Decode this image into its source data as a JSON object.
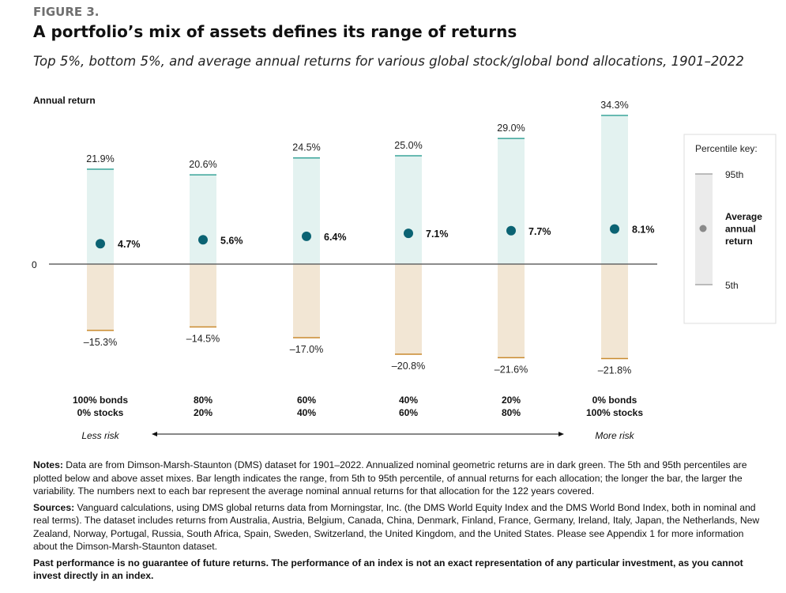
{
  "figure_label": "FIGURE 3.",
  "title": "A portfolio’s mix of assets defines its range of returns",
  "subtitle": "Top 5%, bottom 5%, and average annual returns for various global stock/global bond allocations, 1901–2022",
  "chart_data": {
    "type": "range-bar",
    "ylabel": "Annual return",
    "zero_label": "0",
    "categories": [
      {
        "bonds": "100% bonds",
        "stocks": "0% stocks"
      },
      {
        "bonds": "80%",
        "stocks": "20%"
      },
      {
        "bonds": "60%",
        "stocks": "40%"
      },
      {
        "bonds": "40%",
        "stocks": "60%"
      },
      {
        "bonds": "20%",
        "stocks": "80%"
      },
      {
        "bonds": "0% bonds",
        "stocks": "100% stocks"
      }
    ],
    "p95": [
      21.9,
      20.6,
      24.5,
      25.0,
      29.0,
      34.3
    ],
    "p5": [
      -15.3,
      -14.5,
      -17.0,
      -20.8,
      -21.6,
      -21.8
    ],
    "average": [
      4.7,
      5.6,
      6.4,
      7.1,
      7.7,
      8.1
    ],
    "p95_labels": [
      "21.9%",
      "20.6%",
      "24.5%",
      "25.0%",
      "29.0%",
      "34.3%"
    ],
    "p5_labels": [
      "–15.3%",
      "–14.5%",
      "–17.0%",
      "–20.8%",
      "–21.6%",
      "–21.8%"
    ],
    "average_labels": [
      "4.7%",
      "5.6%",
      "6.4%",
      "7.1%",
      "7.7%",
      "8.1%"
    ],
    "risk_left": "Less risk",
    "risk_right": "More risk",
    "colors": {
      "positive_fill": "#e3f2f0",
      "positive_line": "#3aa59a",
      "negative_fill": "#f2e6d4",
      "negative_line": "#c98a2e",
      "dot": "#0b6373",
      "zero_line": "#666666"
    },
    "legend": {
      "title": "Percentile key:",
      "top": "95th",
      "middle": "Average annual return",
      "middle_lines": [
        "Average",
        "annual",
        "return"
      ],
      "bottom": "5th",
      "placement": "right"
    }
  },
  "notes": {
    "notes_label": "Notes:",
    "notes_text": " Data are from Dimson-Marsh-Staunton (DMS) dataset for 1901–2022. Annualized nominal geometric returns are in dark green. The 5th and 95th percentiles are plotted below and above asset mixes. Bar length indicates the range, from 5th to 95th percentile, of annual returns for each allocation; the longer the bar, the larger the variability. The numbers next to each bar represent the average nominal annual returns for that allocation for the 122 years covered.",
    "sources_label": "Sources:",
    "sources_text": " Vanguard calculations, using DMS global returns data from Morningstar, Inc. (the DMS World Equity Index and the DMS World Bond Index, both in nominal and real terms). The dataset includes returns from Australia, Austria, Belgium, Canada, China, Denmark, Finland, France, Germany, Ireland, Italy, Japan, the Netherlands, New Zealand, Norway, Portugal, Russia, South Africa, Spain, Sweden, Switzerland, the United Kingdom, and the United States. Please see Appendix 1 for more information about the Dimson-Marsh-Staunton dataset.",
    "disclaimer": "Past performance is no guarantee of future returns. The performance of an index is not an exact representation of any particular investment, as you cannot invest directly in an index."
  }
}
